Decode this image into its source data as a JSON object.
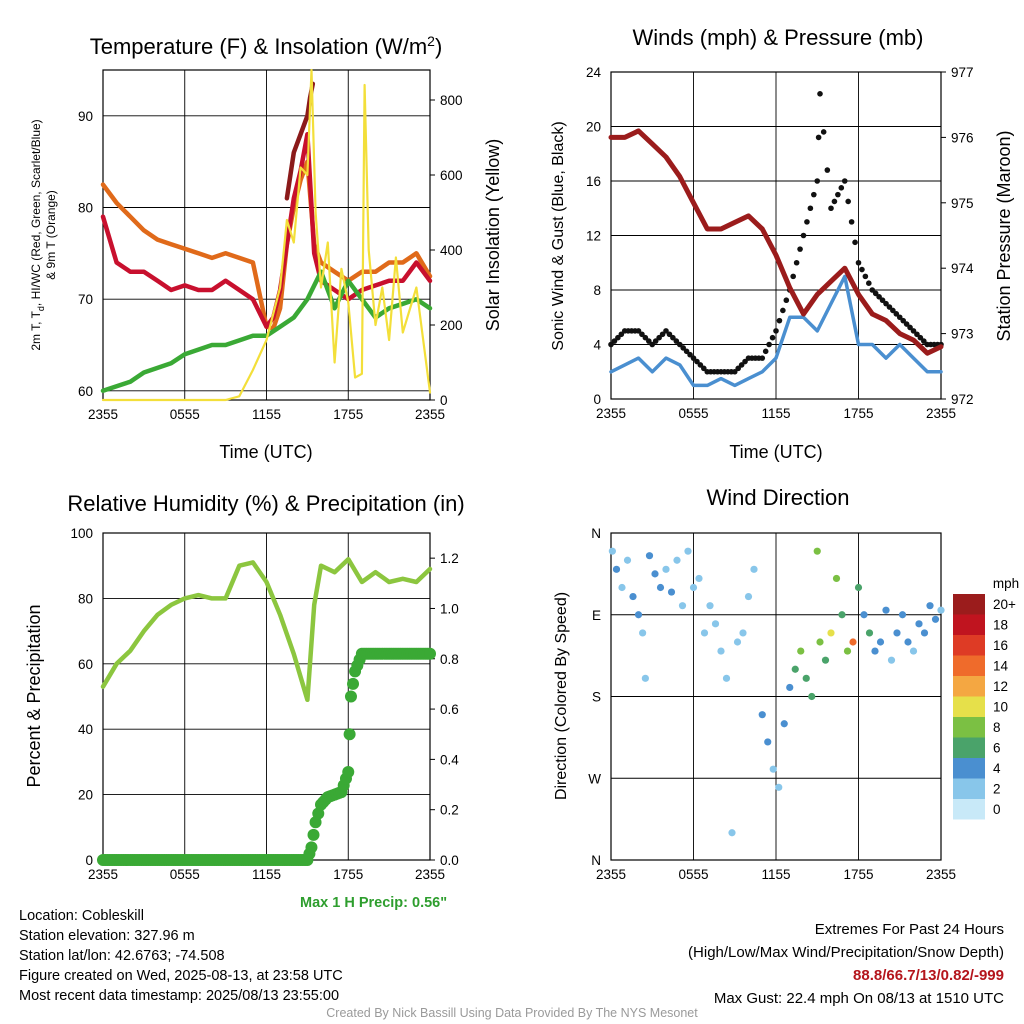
{
  "chart_data": [
    {
      "type": "line",
      "title": "Temperature (F) & Insolation (W/m2)",
      "title_parts": {
        "before": "Temperature (F) & Insolation (W/m",
        "sup": "2",
        "after": ")"
      },
      "ylabel_left_line1": "2m T, T",
      "ylabel_left_sub": "d",
      "ylabel_left_line1b": ", HI/WC (Red, Green, Scarlet/Blue)",
      "ylabel_left_line2": "& 9m T (Orange)",
      "ylabel_right": "Solar Insolation (Yellow)",
      "xlabel": "Time (UTC)",
      "x_ticks": [
        "2355",
        "0555",
        "1155",
        "1755",
        "2355"
      ],
      "ylim": [
        59,
        95
      ],
      "y_ticks": [
        60,
        70,
        80,
        90
      ],
      "y2lim": [
        0,
        880
      ],
      "y2_ticks": [
        0,
        200,
        400,
        600,
        800
      ],
      "series": [
        {
          "color": "#e06a1a",
          "x_hours": [
            0,
            1,
            2,
            3,
            4,
            5,
            6,
            7,
            8,
            9,
            10,
            11,
            12,
            12.5,
            13,
            13.5,
            14,
            14.5,
            15,
            15.5,
            16,
            17,
            18,
            19,
            20,
            21,
            22,
            23,
            24
          ],
          "values": [
            82.5,
            80.5,
            79,
            77.5,
            76.5,
            76,
            75.5,
            75,
            74.5,
            75,
            74.5,
            74,
            67,
            66.8,
            69,
            76,
            80,
            83,
            85,
            76,
            74,
            73,
            72,
            73,
            73,
            74,
            74,
            75,
            72.5
          ]
        },
        {
          "color": "#c8102e",
          "x_hours": [
            0,
            1,
            2,
            3,
            4,
            5,
            6,
            7,
            8,
            9,
            10,
            11,
            12,
            12.5,
            13,
            13.5,
            14,
            14.5,
            15,
            15.5,
            16,
            17,
            18,
            19,
            20,
            21,
            22,
            23,
            24
          ],
          "values": [
            79,
            74,
            73,
            73,
            72,
            71,
            71.5,
            71,
            71,
            72,
            71,
            70,
            67,
            68,
            71,
            76,
            81,
            84,
            88,
            75,
            72,
            71,
            70,
            71,
            71.5,
            72,
            72,
            74,
            72
          ]
        },
        {
          "color": "#8b1a1a",
          "x_hours": [
            13.5,
            14,
            14.5,
            15,
            15.2,
            15.4
          ],
          "values": [
            81,
            86,
            88,
            90,
            92,
            93.5
          ]
        },
        {
          "color": "#3aa935",
          "x_hours": [
            0,
            1,
            2,
            3,
            4,
            5,
            6,
            7,
            8,
            9,
            10,
            11,
            12,
            13,
            14,
            15,
            16,
            17,
            18,
            19,
            20,
            21,
            22,
            23,
            24
          ],
          "values": [
            60,
            60.5,
            61,
            62,
            62.5,
            63,
            64,
            64.5,
            65,
            65,
            65.5,
            66,
            66,
            67,
            68,
            70,
            73,
            69,
            72,
            70,
            68,
            69,
            69.5,
            70,
            69
          ]
        },
        {
          "color": "#f3df3a",
          "axis": "right",
          "x_hours": [
            0,
            9,
            10,
            11,
            12,
            13,
            13.5,
            14,
            14.5,
            15,
            15.3,
            15.6,
            16,
            16.5,
            17,
            17.5,
            18,
            18.5,
            19,
            19.2,
            19.5,
            20,
            20.5,
            21,
            21.5,
            22,
            23,
            24
          ],
          "values": [
            0,
            0,
            10,
            80,
            160,
            300,
            480,
            420,
            620,
            600,
            880,
            500,
            300,
            420,
            100,
            350,
            260,
            60,
            70,
            840,
            400,
            200,
            300,
            160,
            380,
            180,
            300,
            20
          ]
        }
      ]
    },
    {
      "type": "line",
      "title": "Winds (mph) & Pressure (mb)",
      "ylabel_left": "Sonic Wind & Gust (Blue, Black)",
      "ylabel_right": "Station Pressure (Maroon)",
      "xlabel": "Time (UTC)",
      "x_ticks": [
        "2355",
        "0555",
        "1155",
        "1755",
        "2355"
      ],
      "ylim": [
        0,
        24
      ],
      "y_ticks": [
        0,
        4,
        8,
        12,
        16,
        20,
        24
      ],
      "y2lim": [
        972,
        977
      ],
      "y2_ticks": [
        972,
        973,
        974,
        975,
        976,
        977
      ],
      "series": [
        {
          "color": "#4a8fd0",
          "name_hint": "wind",
          "x_hours": [
            0,
            1,
            2,
            3,
            4,
            5,
            6,
            7,
            8,
            9,
            10,
            11,
            12,
            13,
            14,
            15,
            16,
            17,
            18,
            19,
            20,
            21,
            22,
            23,
            24
          ],
          "values": [
            2,
            2.5,
            3,
            2,
            3,
            2.5,
            1,
            1,
            1.5,
            1,
            1.5,
            2,
            3,
            6,
            6,
            5,
            7,
            9,
            4,
            4,
            3,
            4,
            3,
            2,
            2
          ]
        },
        {
          "color": "#111111",
          "name_hint": "gust",
          "x_hours": [
            0,
            1,
            2,
            3,
            4,
            5,
            6,
            7,
            8,
            9,
            10,
            11,
            12,
            13,
            14,
            15,
            15.2,
            16,
            17,
            18,
            19,
            20,
            21,
            22,
            23,
            24
          ],
          "values": [
            4,
            5,
            5,
            4,
            5,
            4,
            3,
            2,
            2,
            2,
            3,
            3,
            5,
            8,
            12,
            16,
            22.4,
            14,
            16,
            10,
            8,
            7,
            6,
            5,
            4,
            4
          ]
        },
        {
          "color": "#9b1c1c",
          "axis": "right",
          "x_hours": [
            0,
            1,
            2,
            3,
            4,
            5,
            6,
            7,
            8,
            9,
            10,
            11,
            12,
            13,
            14,
            15,
            16,
            17,
            18,
            19,
            20,
            21,
            22,
            23,
            24
          ],
          "values": [
            976,
            976,
            976.1,
            975.9,
            975.7,
            975.4,
            975,
            974.6,
            974.6,
            974.7,
            974.8,
            974.6,
            974.2,
            973.7,
            973.3,
            973.6,
            973.8,
            974,
            973.6,
            973.3,
            973.2,
            973,
            972.9,
            972.7,
            972.8
          ]
        }
      ]
    },
    {
      "type": "line",
      "title": "Relative Humidity (%) & Precipitation (in)",
      "ylabel_left": "Percent & Precipitation",
      "x_ticks": [
        "2355",
        "0555",
        "1155",
        "1755",
        "2355"
      ],
      "ylim": [
        0,
        100
      ],
      "y_ticks": [
        0,
        20,
        40,
        60,
        80,
        100
      ],
      "y2lim": [
        0,
        1.3
      ],
      "y2_ticks": [
        "0.0",
        "0.2",
        "0.4",
        "0.6",
        "0.8",
        "1.0",
        "1.2"
      ],
      "series": [
        {
          "color": "#8cc63f",
          "x_hours": [
            0,
            1,
            2,
            3,
            4,
            5,
            6,
            7,
            8,
            9,
            10,
            11,
            12,
            13,
            14,
            15,
            15.5,
            16,
            17,
            18,
            19,
            20,
            21,
            22,
            23,
            24
          ],
          "values": [
            53,
            60,
            64,
            70,
            75,
            78,
            80,
            81,
            80,
            80,
            90,
            91,
            85,
            75,
            63,
            49,
            78,
            90,
            88,
            92,
            85,
            88,
            85,
            86,
            85,
            89
          ]
        },
        {
          "color": "#3aa935",
          "axis": "right",
          "x_hours": [
            0,
            5,
            10,
            15,
            15.3,
            15.6,
            16,
            16.5,
            17,
            17.5,
            18,
            18.2,
            18.5,
            19,
            20,
            24
          ],
          "values": [
            0,
            0,
            0,
            0,
            0.05,
            0.15,
            0.22,
            0.25,
            0.26,
            0.27,
            0.35,
            0.65,
            0.75,
            0.82,
            0.82,
            0.82
          ]
        }
      ]
    },
    {
      "type": "scatter",
      "title": "Wind Direction",
      "ylabel_left": "Direction (Colored By Speed)",
      "x_ticks": [
        "2355",
        "0555",
        "1155",
        "1755",
        "2355"
      ],
      "y_ticks": [
        "N",
        "W",
        "S",
        "E",
        "N"
      ],
      "ylim": [
        0,
        360
      ],
      "legend_title": "mph",
      "legend_labels": [
        "0",
        "2",
        "4",
        "6",
        "8",
        "10",
        "12",
        "14",
        "16",
        "18",
        "20+"
      ],
      "legend_colors": [
        "#c8e9f8",
        "#88c6ea",
        "#4a8fd0",
        "#4aa36a",
        "#7bc043",
        "#e6e04a",
        "#f4a742",
        "#ef6b2b",
        "#de3b25",
        "#c0141f",
        "#9b1c1c"
      ],
      "points": [
        {
          "h": 0.1,
          "d": 340,
          "s": 2
        },
        {
          "h": 0.4,
          "d": 320,
          "s": 3
        },
        {
          "h": 0.8,
          "d": 300,
          "s": 2
        },
        {
          "h": 1.2,
          "d": 330,
          "s": 2
        },
        {
          "h": 1.6,
          "d": 290,
          "s": 4
        },
        {
          "h": 2.0,
          "d": 270,
          "s": 3
        },
        {
          "h": 2.3,
          "d": 250,
          "s": 2
        },
        {
          "h": 2.5,
          "d": 200,
          "s": 1
        },
        {
          "h": 2.8,
          "d": 335,
          "s": 3
        },
        {
          "h": 3.2,
          "d": 315,
          "s": 4
        },
        {
          "h": 3.6,
          "d": 300,
          "s": 3
        },
        {
          "h": 4.0,
          "d": 320,
          "s": 2
        },
        {
          "h": 4.4,
          "d": 295,
          "s": 3
        },
        {
          "h": 4.8,
          "d": 330,
          "s": 2
        },
        {
          "h": 5.2,
          "d": 280,
          "s": 1
        },
        {
          "h": 5.6,
          "d": 340,
          "s": 1
        },
        {
          "h": 6.0,
          "d": 300,
          "s": 2
        },
        {
          "h": 6.4,
          "d": 310,
          "s": 2
        },
        {
          "h": 6.8,
          "d": 250,
          "s": 1
        },
        {
          "h": 7.2,
          "d": 280,
          "s": 1
        },
        {
          "h": 7.6,
          "d": 260,
          "s": 1
        },
        {
          "h": 8.0,
          "d": 230,
          "s": 1
        },
        {
          "h": 8.4,
          "d": 200,
          "s": 1
        },
        {
          "h": 8.8,
          "d": 30,
          "s": 1
        },
        {
          "h": 9.2,
          "d": 240,
          "s": 1
        },
        {
          "h": 9.6,
          "d": 250,
          "s": 1
        },
        {
          "h": 10.0,
          "d": 290,
          "s": 2
        },
        {
          "h": 10.4,
          "d": 320,
          "s": 1
        },
        {
          "h": 11.0,
          "d": 160,
          "s": 3
        },
        {
          "h": 11.4,
          "d": 130,
          "s": 4
        },
        {
          "h": 11.8,
          "d": 100,
          "s": 2
        },
        {
          "h": 12.2,
          "d": 80,
          "s": 2
        },
        {
          "h": 12.6,
          "d": 150,
          "s": 3
        },
        {
          "h": 13.0,
          "d": 190,
          "s": 4
        },
        {
          "h": 13.4,
          "d": 210,
          "s": 5
        },
        {
          "h": 13.8,
          "d": 230,
          "s": 7
        },
        {
          "h": 14.2,
          "d": 200,
          "s": 6
        },
        {
          "h": 14.6,
          "d": 180,
          "s": 5
        },
        {
          "h": 15.0,
          "d": 340,
          "s": 8
        },
        {
          "h": 15.2,
          "d": 240,
          "s": 8
        },
        {
          "h": 15.6,
          "d": 220,
          "s": 6
        },
        {
          "h": 16.0,
          "d": 250,
          "s": 10
        },
        {
          "h": 16.4,
          "d": 310,
          "s": 8
        },
        {
          "h": 16.8,
          "d": 270,
          "s": 6
        },
        {
          "h": 17.2,
          "d": 230,
          "s": 7
        },
        {
          "h": 17.6,
          "d": 240,
          "s": 13
        },
        {
          "h": 18.0,
          "d": 300,
          "s": 5
        },
        {
          "h": 18.4,
          "d": 270,
          "s": 4
        },
        {
          "h": 18.8,
          "d": 250,
          "s": 5
        },
        {
          "h": 19.2,
          "d": 230,
          "s": 4
        },
        {
          "h": 19.6,
          "d": 240,
          "s": 3
        },
        {
          "h": 20.0,
          "d": 275,
          "s": 3
        },
        {
          "h": 20.4,
          "d": 220,
          "s": 2
        },
        {
          "h": 20.8,
          "d": 250,
          "s": 3
        },
        {
          "h": 21.2,
          "d": 270,
          "s": 4
        },
        {
          "h": 21.6,
          "d": 240,
          "s": 3
        },
        {
          "h": 22.0,
          "d": 230,
          "s": 2
        },
        {
          "h": 22.4,
          "d": 260,
          "s": 3
        },
        {
          "h": 22.8,
          "d": 250,
          "s": 4
        },
        {
          "h": 23.2,
          "d": 280,
          "s": 4
        },
        {
          "h": 23.6,
          "d": 265,
          "s": 3
        },
        {
          "h": 24.0,
          "d": 275,
          "s": 2
        }
      ]
    }
  ],
  "precip_note": "Max 1 H Precip: 0.56\"",
  "info_left": [
    "Location: Cobleskill",
    "Station elevation: 327.96 m",
    "Station lat/lon: 42.6763; -74.508",
    "Figure created on Wed, 2025-08-13, at 23:58 UTC",
    "Most recent data timestamp: 2025/08/13 23:55:00"
  ],
  "extremes": {
    "title": "Extremes For Past 24 Hours",
    "subtitle": "(High/Low/Max Wind/Precipitation/Snow Depth)",
    "values": "88.8/66.7/13/0.82/-999",
    "gust": "Max Gust: 22.4 mph On 08/13 at 1510 UTC"
  },
  "credit": "Created By Nick Bassill Using Data Provided By The NYS Mesonet"
}
